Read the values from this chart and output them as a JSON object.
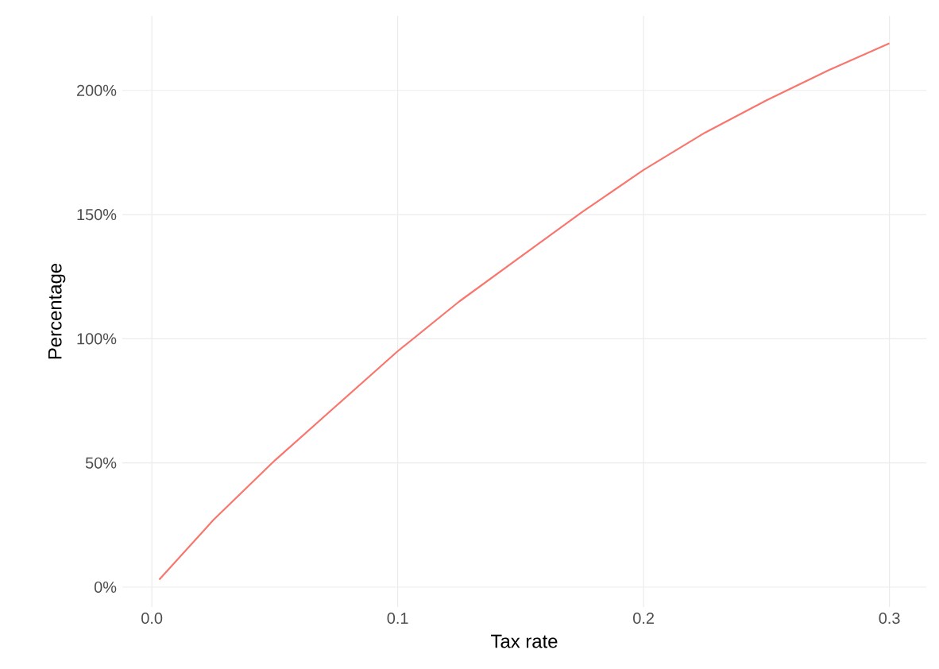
{
  "chart_data": {
    "type": "line",
    "xlabel": "Tax rate",
    "ylabel": "Percentage",
    "x": [
      0.003,
      0.025,
      0.05,
      0.075,
      0.1,
      0.125,
      0.15,
      0.175,
      0.2,
      0.225,
      0.25,
      0.275,
      0.3
    ],
    "series": [
      {
        "color": "#f8766d",
        "values": [
          3,
          27,
          51,
          73,
          95,
          115,
          133,
          151,
          168,
          183,
          196,
          208,
          219
        ]
      }
    ],
    "xlim": [
      -0.012,
      0.315
    ],
    "ylim": [
      -8,
      230
    ],
    "xticks": [
      {
        "value": 0,
        "label": "0.0"
      },
      0.1,
      0.2,
      0.3
    ],
    "yticks": [
      {
        "value": 0,
        "label": "0%"
      },
      {
        "value": 50,
        "label": "50%"
      },
      {
        "value": 100,
        "label": "100%"
      },
      {
        "value": 150,
        "label": "150%"
      },
      {
        "value": 200,
        "label": "200%"
      }
    ],
    "grid": true,
    "marker": "none",
    "line_style": "solid"
  }
}
